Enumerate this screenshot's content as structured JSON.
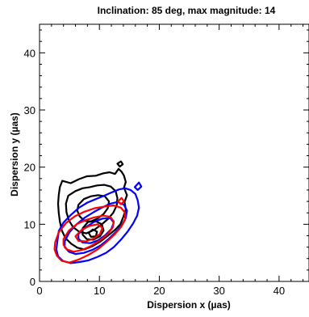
{
  "chart_data": {
    "type": "contour",
    "title": "Inclination: 85 deg, max magnitude: 14",
    "xlabel": "Dispersion x (µas)",
    "ylabel": "Dispersion y (µas)",
    "xlim": [
      0,
      45
    ],
    "ylim": [
      0,
      45
    ],
    "xticks": [
      0,
      10,
      20,
      30,
      40
    ],
    "yticks": [
      0,
      10,
      20,
      30,
      40
    ],
    "grid": false,
    "series": [
      {
        "color": "#000000",
        "contours": [
          [
            [
              3.8,
              17.6
            ],
            [
              5.2,
              17.2
            ],
            [
              6.6,
              17.9
            ],
            [
              7.9,
              18.4
            ],
            [
              9.4,
              18.5
            ],
            [
              10.6,
              18.9
            ],
            [
              11.7,
              19.1
            ],
            [
              12.6,
              18.8
            ],
            [
              13.2,
              19.7
            ],
            [
              13.7,
              19.2
            ],
            [
              14.1,
              18.5
            ],
            [
              14.4,
              17.4
            ],
            [
              14.1,
              16.4
            ],
            [
              14.6,
              15.1
            ],
            [
              14.2,
              13.9
            ],
            [
              14.4,
              12.6
            ],
            [
              14.0,
              11.3
            ],
            [
              13.5,
              10.0
            ],
            [
              12.6,
              9.0
            ],
            [
              11.4,
              8.0
            ],
            [
              10.2,
              7.0
            ],
            [
              8.9,
              6.2
            ],
            [
              7.5,
              5.6
            ],
            [
              6.3,
              5.9
            ],
            [
              5.3,
              6.6
            ],
            [
              4.3,
              7.6
            ],
            [
              3.7,
              9.0
            ],
            [
              3.4,
              10.5
            ],
            [
              3.2,
              12.0
            ],
            [
              3.1,
              13.6
            ],
            [
              3.2,
              15.1
            ],
            [
              3.4,
              16.5
            ],
            [
              3.8,
              17.6
            ]
          ],
          [
            [
              4.8,
              15.0
            ],
            [
              6.0,
              15.8
            ],
            [
              7.2,
              16.3
            ],
            [
              8.4,
              16.5
            ],
            [
              9.6,
              16.8
            ],
            [
              10.8,
              16.9
            ],
            [
              11.9,
              16.6
            ],
            [
              12.7,
              15.8
            ],
            [
              13.0,
              14.6
            ],
            [
              12.9,
              13.3
            ],
            [
              12.3,
              12.0
            ],
            [
              11.4,
              10.9
            ],
            [
              10.3,
              9.9
            ],
            [
              9.1,
              9.0
            ],
            [
              7.8,
              8.4
            ],
            [
              6.6,
              8.7
            ],
            [
              5.6,
              9.5
            ],
            [
              4.9,
              10.7
            ],
            [
              4.5,
              12.1
            ],
            [
              4.4,
              13.6
            ],
            [
              4.8,
              15.0
            ]
          ],
          [
            [
              6.5,
              13.4
            ],
            [
              7.4,
              14.4
            ],
            [
              8.6,
              14.9
            ],
            [
              9.8,
              15.1
            ],
            [
              10.9,
              14.9
            ],
            [
              11.6,
              14.0
            ],
            [
              11.4,
              12.8
            ],
            [
              10.7,
              11.8
            ],
            [
              9.7,
              11.0
            ],
            [
              8.6,
              10.5
            ],
            [
              7.5,
              10.6
            ],
            [
              6.7,
              11.4
            ],
            [
              6.3,
              12.4
            ],
            [
              6.5,
              13.4
            ]
          ],
          [
            [
              7.2,
              9.3
            ],
            [
              8.1,
              10.4
            ],
            [
              9.3,
              10.6
            ],
            [
              10.4,
              10.0
            ],
            [
              10.7,
              8.9
            ],
            [
              10.1,
              7.9
            ],
            [
              9.0,
              7.3
            ],
            [
              7.9,
              7.4
            ],
            [
              7.2,
              8.2
            ],
            [
              7.2,
              9.3
            ]
          ],
          [
            [
              8.2,
              8.5
            ],
            [
              8.9,
              9.1
            ],
            [
              9.6,
              8.7
            ],
            [
              9.4,
              7.9
            ],
            [
              8.6,
              7.8
            ],
            [
              8.2,
              8.5
            ]
          ],
          [
            [
              13.0,
              20.6
            ],
            [
              13.6,
              21.0
            ],
            [
              13.9,
              20.5
            ],
            [
              13.4,
              20.1
            ],
            [
              13.0,
              20.6
            ]
          ]
        ]
      },
      {
        "color": "#0000ff",
        "contours": [
          [
            [
              3.0,
              7.2
            ],
            [
              3.2,
              8.8
            ],
            [
              4.0,
              10.3
            ],
            [
              5.2,
              11.6
            ],
            [
              6.6,
              12.9
            ],
            [
              8.0,
              13.8
            ],
            [
              9.4,
              14.4
            ],
            [
              10.8,
              15.0
            ],
            [
              12.1,
              15.6
            ],
            [
              13.3,
              16.1
            ],
            [
              14.3,
              16.3
            ],
            [
              15.2,
              16.0
            ],
            [
              16.0,
              15.3
            ],
            [
              16.4,
              14.2
            ],
            [
              16.6,
              12.9
            ],
            [
              16.3,
              11.5
            ],
            [
              15.6,
              10.1
            ],
            [
              14.7,
              8.7
            ],
            [
              13.6,
              7.3
            ],
            [
              12.4,
              6.0
            ],
            [
              11.1,
              5.0
            ],
            [
              9.7,
              4.3
            ],
            [
              8.2,
              3.7
            ],
            [
              6.7,
              3.4
            ],
            [
              5.2,
              3.2
            ],
            [
              3.9,
              3.6
            ],
            [
              3.1,
              4.4
            ],
            [
              2.8,
              5.6
            ],
            [
              3.0,
              7.2
            ]
          ],
          [
            [
              4.2,
              7.0
            ],
            [
              5.0,
              8.6
            ],
            [
              6.2,
              10.0
            ],
            [
              7.6,
              11.2
            ],
            [
              9.0,
              12.1
            ],
            [
              10.4,
              12.9
            ],
            [
              11.8,
              13.6
            ],
            [
              13.0,
              13.9
            ],
            [
              14.1,
              13.4
            ],
            [
              14.6,
              12.4
            ],
            [
              14.4,
              11.1
            ],
            [
              13.7,
              9.8
            ],
            [
              12.7,
              8.6
            ],
            [
              11.5,
              7.4
            ],
            [
              10.2,
              6.3
            ],
            [
              8.8,
              5.5
            ],
            [
              7.4,
              5.0
            ],
            [
              6.0,
              4.8
            ],
            [
              4.9,
              5.2
            ],
            [
              4.2,
              6.0
            ],
            [
              4.2,
              7.0
            ]
          ],
          [
            [
              6.5,
              8.3
            ],
            [
              7.7,
              9.5
            ],
            [
              9.1,
              10.4
            ],
            [
              10.5,
              11.0
            ],
            [
              11.8,
              11.1
            ],
            [
              12.4,
              10.3
            ],
            [
              12.0,
              9.2
            ],
            [
              11.0,
              8.1
            ],
            [
              9.8,
              7.2
            ],
            [
              8.5,
              6.7
            ],
            [
              7.2,
              6.8
            ],
            [
              6.5,
              7.5
            ],
            [
              6.5,
              8.3
            ]
          ],
          [
            [
              15.9,
              16.5
            ],
            [
              16.6,
              17.3
            ],
            [
              17.0,
              16.6
            ],
            [
              16.4,
              16.0
            ],
            [
              15.9,
              16.5
            ]
          ]
        ]
      },
      {
        "color": "#ff0000",
        "contours": [
          [
            [
              2.6,
              6.8
            ],
            [
              3.2,
              8.6
            ],
            [
              4.4,
              10.2
            ],
            [
              5.9,
              11.4
            ],
            [
              7.5,
              12.2
            ],
            [
              9.2,
              12.8
            ],
            [
              10.9,
              13.1
            ],
            [
              12.4,
              13.3
            ],
            [
              13.6,
              12.9
            ],
            [
              14.3,
              12.0
            ],
            [
              14.3,
              10.8
            ],
            [
              13.6,
              9.5
            ],
            [
              12.5,
              8.2
            ],
            [
              11.2,
              6.9
            ],
            [
              9.7,
              5.6
            ],
            [
              8.1,
              4.6
            ],
            [
              6.5,
              3.8
            ],
            [
              5.0,
              3.3
            ],
            [
              3.7,
              3.6
            ],
            [
              2.9,
              4.5
            ],
            [
              2.5,
              5.6
            ],
            [
              2.6,
              6.8
            ]
          ],
          [
            [
              4.0,
              7.4
            ],
            [
              4.9,
              8.9
            ],
            [
              6.2,
              10.0
            ],
            [
              7.6,
              10.7
            ],
            [
              9.1,
              11.2
            ],
            [
              10.6,
              11.5
            ],
            [
              11.8,
              11.3
            ],
            [
              12.4,
              10.5
            ],
            [
              12.2,
              9.4
            ],
            [
              11.3,
              8.2
            ],
            [
              10.0,
              7.1
            ],
            [
              8.6,
              6.2
            ],
            [
              7.1,
              5.5
            ],
            [
              5.7,
              5.2
            ],
            [
              4.6,
              5.6
            ],
            [
              4.0,
              6.4
            ],
            [
              4.0,
              7.4
            ]
          ],
          [
            [
              6.0,
              7.9
            ],
            [
              7.0,
              9.0
            ],
            [
              8.3,
              9.7
            ],
            [
              9.7,
              10.0
            ],
            [
              10.5,
              9.4
            ],
            [
              10.1,
              8.3
            ],
            [
              9.0,
              7.5
            ],
            [
              7.7,
              7.0
            ],
            [
              6.5,
              7.1
            ],
            [
              6.0,
              7.9
            ]
          ],
          [
            [
              13.1,
              14.0
            ],
            [
              13.7,
              14.6
            ],
            [
              14.1,
              14.0
            ],
            [
              13.6,
              13.5
            ],
            [
              13.1,
              14.0
            ]
          ]
        ]
      }
    ]
  }
}
